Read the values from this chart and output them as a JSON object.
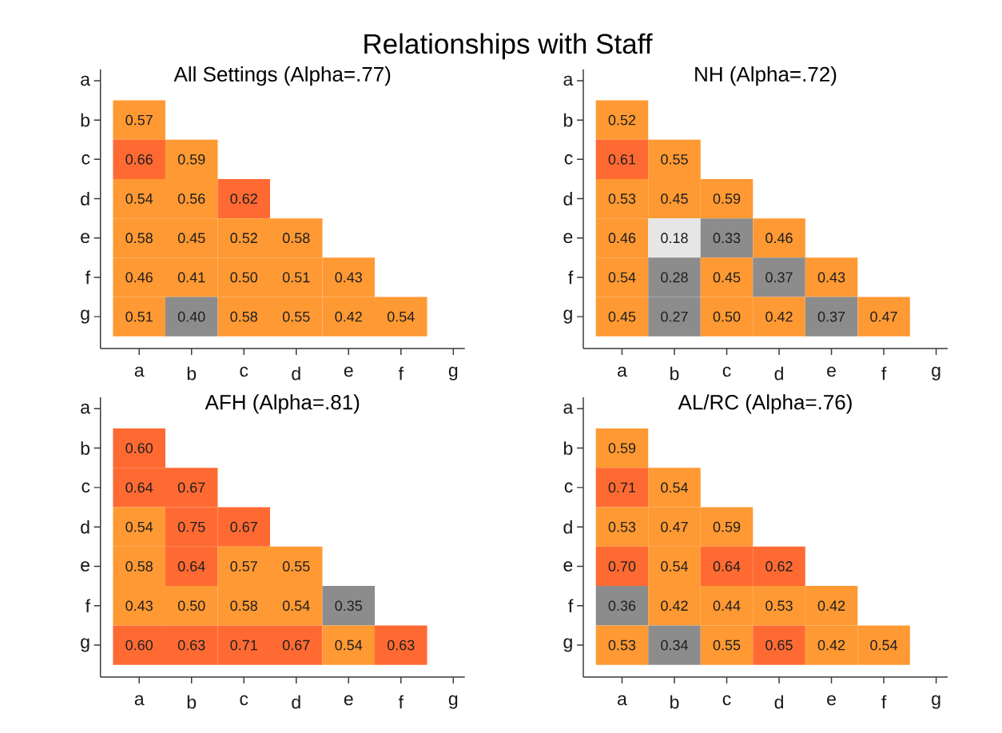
{
  "chart_data": [
    {
      "type": "heatmap",
      "title": "Relationships with Staff",
      "subtitle": "All Settings (Alpha=.77)",
      "categories": [
        "a",
        "b",
        "c",
        "d",
        "e",
        "f",
        "g"
      ],
      "y_categories": [
        "a",
        "b",
        "c",
        "d",
        "e",
        "f",
        "g"
      ],
      "cells": [
        [
          null,
          null,
          null,
          null,
          null,
          null,
          null
        ],
        [
          0.57,
          null,
          null,
          null,
          null,
          null,
          null
        ],
        [
          0.66,
          0.59,
          null,
          null,
          null,
          null,
          null
        ],
        [
          0.54,
          0.56,
          0.62,
          null,
          null,
          null,
          null
        ],
        [
          0.58,
          0.45,
          0.52,
          0.58,
          null,
          null,
          null
        ],
        [
          0.46,
          0.41,
          0.5,
          0.51,
          0.43,
          null,
          null
        ],
        [
          0.51,
          0.4,
          0.58,
          0.55,
          0.42,
          0.54,
          null
        ]
      ],
      "cell_labels": [
        [
          null,
          null,
          null,
          null,
          null,
          null,
          null
        ],
        [
          "0.57",
          null,
          null,
          null,
          null,
          null,
          null
        ],
        [
          "0.66",
          "0.59",
          null,
          null,
          null,
          null,
          null
        ],
        [
          "0.54",
          "0.56",
          "0.62",
          null,
          null,
          null,
          null
        ],
        [
          "0.58",
          "0.45",
          "0.52",
          "0.58",
          null,
          null,
          null
        ],
        [
          "0.46",
          "0.41",
          "0.50",
          "0.51",
          "0.43",
          null,
          null
        ],
        [
          "0.51",
          "0.40",
          "0.58",
          "0.55",
          "0.42",
          "0.54",
          null
        ]
      ]
    },
    {
      "type": "heatmap",
      "title": "NH (Alpha=.72)",
      "categories": [
        "a",
        "b",
        "c",
        "d",
        "e",
        "f",
        "g"
      ],
      "y_categories": [
        "a",
        "b",
        "c",
        "d",
        "e",
        "f",
        "g"
      ],
      "cells": [
        [
          null,
          null,
          null,
          null,
          null,
          null,
          null
        ],
        [
          0.52,
          null,
          null,
          null,
          null,
          null,
          null
        ],
        [
          0.61,
          0.55,
          null,
          null,
          null,
          null,
          null
        ],
        [
          0.53,
          0.45,
          0.59,
          null,
          null,
          null,
          null
        ],
        [
          0.46,
          0.18,
          0.33,
          0.46,
          null,
          null,
          null
        ],
        [
          0.54,
          0.28,
          0.45,
          0.37,
          0.43,
          null,
          null
        ],
        [
          0.45,
          0.27,
          0.5,
          0.42,
          0.37,
          0.47,
          null
        ]
      ],
      "cell_labels": [
        [
          null,
          null,
          null,
          null,
          null,
          null,
          null
        ],
        [
          "0.52",
          null,
          null,
          null,
          null,
          null,
          null
        ],
        [
          "0.61",
          "0.55",
          null,
          null,
          null,
          null,
          null
        ],
        [
          "0.53",
          "0.45",
          "0.59",
          null,
          null,
          null,
          null
        ],
        [
          "0.46",
          "0.18",
          "0.33",
          "0.46",
          null,
          null,
          null
        ],
        [
          "0.54",
          "0.28",
          "0.45",
          "0.37",
          "0.43",
          null,
          null
        ],
        [
          "0.45",
          "0.27",
          "0.50",
          "0.42",
          "0.37",
          "0.47",
          null
        ]
      ]
    },
    {
      "type": "heatmap",
      "title": "AFH (Alpha=.81)",
      "categories": [
        "a",
        "b",
        "c",
        "d",
        "e",
        "f",
        "g"
      ],
      "y_categories": [
        "a",
        "b",
        "c",
        "d",
        "e",
        "f",
        "g"
      ],
      "cells": [
        [
          null,
          null,
          null,
          null,
          null,
          null,
          null
        ],
        [
          0.6,
          null,
          null,
          null,
          null,
          null,
          null
        ],
        [
          0.64,
          0.67,
          null,
          null,
          null,
          null,
          null
        ],
        [
          0.54,
          0.75,
          0.67,
          null,
          null,
          null,
          null
        ],
        [
          0.58,
          0.64,
          0.57,
          0.55,
          null,
          null,
          null
        ],
        [
          0.43,
          0.5,
          0.58,
          0.54,
          0.35,
          null,
          null
        ],
        [
          0.6,
          0.63,
          0.71,
          0.67,
          0.54,
          0.63,
          null
        ]
      ],
      "cell_labels": [
        [
          null,
          null,
          null,
          null,
          null,
          null,
          null
        ],
        [
          "0.60",
          null,
          null,
          null,
          null,
          null,
          null
        ],
        [
          "0.64",
          "0.67",
          null,
          null,
          null,
          null,
          null
        ],
        [
          "0.54",
          "0.75",
          "0.67",
          null,
          null,
          null,
          null
        ],
        [
          "0.58",
          "0.64",
          "0.57",
          "0.55",
          null,
          null,
          null
        ],
        [
          "0.43",
          "0.50",
          "0.58",
          "0.54",
          "0.35",
          null,
          null
        ],
        [
          "0.60",
          "0.63",
          "0.71",
          "0.67",
          "0.54",
          "0.63",
          null
        ]
      ]
    },
    {
      "type": "heatmap",
      "title": "AL/RC (Alpha=.76)",
      "categories": [
        "a",
        "b",
        "c",
        "d",
        "e",
        "f",
        "g"
      ],
      "y_categories": [
        "a",
        "b",
        "c",
        "d",
        "e",
        "f",
        "g"
      ],
      "cells": [
        [
          null,
          null,
          null,
          null,
          null,
          null,
          null
        ],
        [
          0.59,
          null,
          null,
          null,
          null,
          null,
          null
        ],
        [
          0.71,
          0.54,
          null,
          null,
          null,
          null,
          null
        ],
        [
          0.53,
          0.47,
          0.59,
          null,
          null,
          null,
          null
        ],
        [
          0.7,
          0.54,
          0.64,
          0.62,
          null,
          null,
          null
        ],
        [
          0.36,
          0.42,
          0.44,
          0.53,
          0.42,
          null,
          null
        ],
        [
          0.53,
          0.34,
          0.55,
          0.65,
          0.42,
          0.54,
          null
        ]
      ],
      "cell_labels": [
        [
          null,
          null,
          null,
          null,
          null,
          null,
          null
        ],
        [
          "0.59",
          null,
          null,
          null,
          null,
          null,
          null
        ],
        [
          "0.71",
          "0.54",
          null,
          null,
          null,
          null,
          null
        ],
        [
          "0.53",
          "0.47",
          "0.59",
          null,
          null,
          null,
          null
        ],
        [
          "0.70",
          "0.54",
          "0.64",
          "0.62",
          null,
          null,
          null
        ],
        [
          "0.36",
          "0.42",
          "0.44",
          "0.53",
          "0.42",
          null,
          null
        ],
        [
          "0.53",
          "0.34",
          "0.55",
          "0.65",
          "0.42",
          "0.54",
          null
        ]
      ]
    }
  ]
}
